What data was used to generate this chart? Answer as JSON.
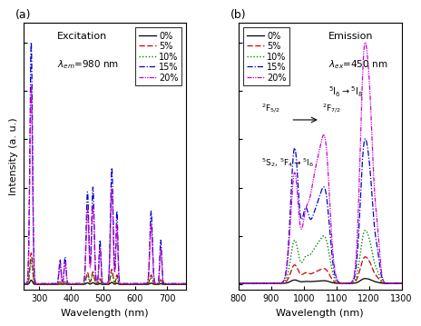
{
  "panel_a": {
    "title": "Excitation",
    "lambda_text": "$\\lambda_{em}$=980 nm",
    "xlabel": "Wavelength (nm)",
    "ylabel": "Intensity (a. u.)",
    "xlim": [
      250,
      760
    ],
    "xticks": [
      300,
      400,
      500,
      600,
      700
    ]
  },
  "panel_b": {
    "title": "Emission",
    "lambda_text": "$\\lambda_{ex}$=450 nm",
    "xlabel": "Wavelength (nm)",
    "xlim": [
      800,
      1300
    ],
    "xticks": [
      800,
      900,
      1000,
      1100,
      1200,
      1300
    ]
  },
  "legend_labels": [
    "0%",
    "5%",
    "10%",
    "15%",
    "20%"
  ],
  "colors": [
    "#000000",
    "#cc0000",
    "#008800",
    "#0000cc",
    "#cc00cc"
  ],
  "label_fontsize": 8,
  "tick_fontsize": 7,
  "legend_fontsize": 7,
  "panel_label_fontsize": 9
}
